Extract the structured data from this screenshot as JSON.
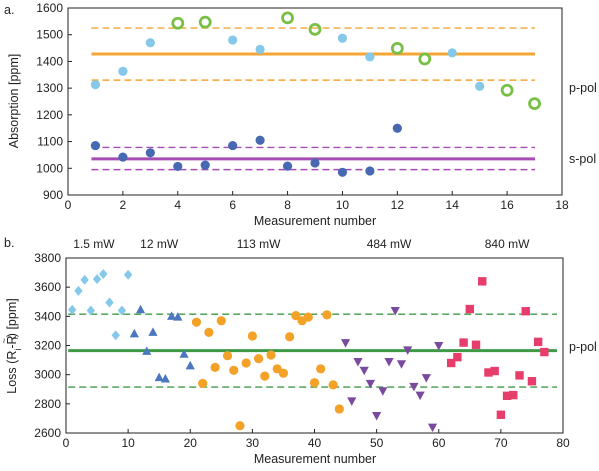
{
  "colors": {
    "p_pol_line": "#f4a534",
    "s_pol_line": "#a64db5",
    "light_blue": "#85c8ea",
    "dark_blue": "#4669b2",
    "green_ring": "#78bf45",
    "blue_marker": "#4b77be",
    "orange": "#f3a127",
    "purple": "#7a4a9f",
    "pink": "#e73d6c",
    "green_line": "#3e9a47"
  },
  "chart_data": [
    {
      "type": "scatter",
      "panel_label": "a.",
      "xlabel": "Measurement number",
      "ylabel": "Absorption [ppm]",
      "xlim": [
        0,
        18
      ],
      "ylim": [
        900,
        1600
      ],
      "xticks": [
        0,
        2,
        4,
        6,
        8,
        10,
        12,
        14,
        16,
        18
      ],
      "yticks": [
        900,
        1000,
        1100,
        1200,
        1300,
        1400,
        1500,
        1600
      ],
      "series": [
        {
          "marker": "light-blue-dot",
          "points": [
            [
              1,
              1313
            ],
            [
              2,
              1363
            ],
            [
              3,
              1470
            ],
            [
              6,
              1480
            ],
            [
              7,
              1445
            ],
            [
              10,
              1487
            ],
            [
              11,
              1417
            ],
            [
              14,
              1432
            ],
            [
              15,
              1307
            ]
          ]
        },
        {
          "marker": "green-ring",
          "points": [
            [
              4,
              1543
            ],
            [
              5,
              1547
            ],
            [
              8,
              1563
            ],
            [
              9,
              1520
            ],
            [
              12,
              1449
            ],
            [
              13,
              1409
            ],
            [
              16,
              1292
            ],
            [
              17,
              1242
            ]
          ]
        },
        {
          "marker": "dark-blue-dot",
          "points": [
            [
              1,
              1085
            ],
            [
              2,
              1042
            ],
            [
              3,
              1058
            ],
            [
              4,
              1007
            ],
            [
              5,
              1012
            ],
            [
              6,
              1085
            ],
            [
              7,
              1105
            ],
            [
              8,
              1008
            ],
            [
              9,
              1020
            ],
            [
              10,
              985
            ],
            [
              11,
              990
            ],
            [
              12,
              1150
            ]
          ]
        }
      ],
      "reference_lines": [
        {
          "label": "p-pol",
          "y": 1428,
          "dashed": [
            1330,
            1525
          ],
          "color": "#f4a534"
        },
        {
          "label": "s-pol",
          "y": 1035,
          "dashed": [
            995,
            1078
          ],
          "color": "#a64db5"
        }
      ]
    },
    {
      "type": "scatter",
      "panel_label": "b.",
      "xlabel": "Measurement number",
      "ylabel_main": "Loss (R",
      "ylabel_sub1": "i",
      "ylabel_mid": "-R",
      "ylabel_tilde": "~",
      "ylabel_sub2": "i",
      "ylabel_end": ") [ppm]",
      "xlim": [
        0,
        80
      ],
      "ylim": [
        2600,
        3800
      ],
      "xticks": [
        0,
        10,
        20,
        30,
        40,
        50,
        60,
        70,
        80
      ],
      "yticks": [
        2600,
        2800,
        3000,
        3200,
        3400,
        3600,
        3800
      ],
      "powers": [
        {
          "label": "1.5 mW",
          "x": 4.5
        },
        {
          "label": "12 mW",
          "x": 15
        },
        {
          "label": "113 mW",
          "x": 31
        },
        {
          "label": "484 mW",
          "x": 52
        },
        {
          "label": "840 mW",
          "x": 71
        }
      ],
      "series": [
        {
          "marker": "light-blue-diamond",
          "power": "1.5 mW",
          "points": [
            [
              1,
              3445
            ],
            [
              2,
              3575
            ],
            [
              3,
              3650
            ],
            [
              4,
              3440
            ],
            [
              5,
              3655
            ],
            [
              6,
              3690
            ],
            [
              7,
              3495
            ],
            [
              8,
              3270
            ],
            [
              9,
              3440
            ],
            [
              10,
              3685
            ]
          ]
        },
        {
          "marker": "blue-triangle",
          "power": "12 mW",
          "points": [
            [
              11,
              3280
            ],
            [
              12,
              3445
            ],
            [
              13,
              3160
            ],
            [
              14,
              3290
            ],
            [
              15,
              2980
            ],
            [
              16,
              2970
            ],
            [
              17,
              3400
            ],
            [
              18,
              3395
            ],
            [
              19,
              3140
            ],
            [
              20,
              3060
            ]
          ]
        },
        {
          "marker": "orange-dot",
          "power": "113 mW",
          "points": [
            [
              21,
              3360
            ],
            [
              22,
              2940
            ],
            [
              23,
              3290
            ],
            [
              24,
              3050
            ],
            [
              25,
              3370
            ],
            [
              26,
              3130
            ],
            [
              27,
              3030
            ],
            [
              28,
              2650
            ],
            [
              29,
              3080
            ],
            [
              30,
              3265
            ],
            [
              31,
              3110
            ],
            [
              32,
              2990
            ],
            [
              33,
              3135
            ],
            [
              34,
              3040
            ],
            [
              35,
              3010
            ],
            [
              36,
              3260
            ],
            [
              37,
              3405
            ],
            [
              38,
              3370
            ],
            [
              39,
              3395
            ],
            [
              40,
              2945
            ],
            [
              41,
              3040
            ],
            [
              42,
              3410
            ],
            [
              43,
              2930
            ],
            [
              44,
              2765
            ]
          ]
        },
        {
          "marker": "purple-triangle-down",
          "power": "484 mW",
          "points": [
            [
              45,
              3220
            ],
            [
              46,
              2820
            ],
            [
              47,
              3090
            ],
            [
              48,
              3030
            ],
            [
              49,
              2940
            ],
            [
              50,
              2720
            ],
            [
              51,
              2890
            ],
            [
              52,
              3090
            ],
            [
              53,
              3440
            ],
            [
              54,
              3075
            ],
            [
              55,
              3170
            ],
            [
              56,
              2920
            ],
            [
              57,
              2860
            ],
            [
              58,
              2980
            ],
            [
              59,
              2640
            ],
            [
              60,
              3200
            ]
          ]
        },
        {
          "marker": "pink-square",
          "power": "840 mW",
          "points": [
            [
              62,
              3080
            ],
            [
              63,
              3120
            ],
            [
              64,
              3220
            ],
            [
              65,
              3450
            ],
            [
              66,
              3205
            ],
            [
              67,
              3640
            ],
            [
              68,
              3015
            ],
            [
              69,
              3025
            ],
            [
              70,
              2725
            ],
            [
              71,
              2855
            ],
            [
              72,
              2860
            ],
            [
              73,
              2995
            ],
            [
              74,
              3435
            ],
            [
              75,
              2955
            ],
            [
              76,
              3225
            ],
            [
              77,
              3155
            ]
          ]
        }
      ],
      "reference_lines": [
        {
          "label": "p-pol",
          "y": 3165,
          "dashed": [
            2915,
            3415
          ],
          "color": "#3e9a47"
        }
      ]
    }
  ]
}
